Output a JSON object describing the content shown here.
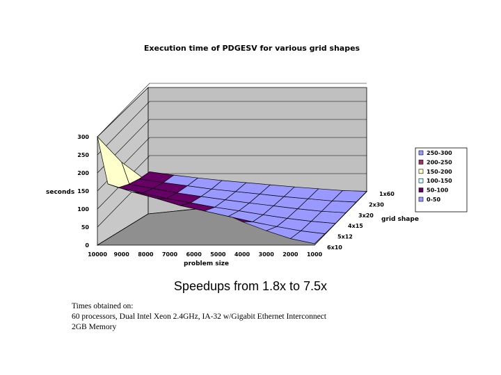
{
  "caption": "Speedups from 1.8x to 7.5x",
  "notes": {
    "line1": "Times obtained on:",
    "line2": "60 processors, Dual Intel Xeon 2.4GHz, IA-32 w/Gigabit Ethernet Interconnect",
    "line3": "2GB Memory"
  },
  "chart_data": {
    "type": "surface",
    "title": "Execution time of PDGESV for various grid shapes",
    "xlabel": "problem size",
    "ylabel": "grid shape",
    "zlabel": "seconds",
    "x": [
      "10000",
      "9000",
      "8000",
      "7000",
      "6000",
      "5000",
      "4000",
      "3000",
      "2000",
      "1000"
    ],
    "y": [
      "1x60",
      "2x30",
      "3x20",
      "4x15",
      "5x12",
      "6x10"
    ],
    "z_ticks": [
      "0",
      "50",
      "100",
      "150",
      "200",
      "250",
      "300"
    ],
    "zlim": [
      0,
      300
    ],
    "z": [
      [
        300,
        230,
        180,
        150,
        120,
        95,
        65,
        40,
        18,
        4
      ],
      [
        140,
        118,
        100,
        80,
        65,
        50,
        35,
        22,
        10,
        2
      ],
      [
        100,
        85,
        70,
        58,
        46,
        36,
        25,
        15,
        7,
        1
      ],
      [
        80,
        68,
        56,
        46,
        37,
        28,
        20,
        12,
        5,
        1
      ],
      [
        65,
        55,
        46,
        37,
        30,
        23,
        16,
        10,
        4,
        1
      ],
      [
        55,
        46,
        38,
        31,
        25,
        19,
        13,
        8,
        3,
        1
      ]
    ],
    "legend": [
      {
        "label": "250-300",
        "color": "#9999ff"
      },
      {
        "label": "200-250",
        "color": "#993366"
      },
      {
        "label": "150-200",
        "color": "#ffffcc"
      },
      {
        "label": "100-150",
        "color": "#ccffff"
      },
      {
        "label": "50-100",
        "color": "#660066"
      },
      {
        "label": "0-50",
        "color": "#9999ff"
      }
    ],
    "band_colors": [
      "#9999ff",
      "#993366",
      "#ffffcc",
      "#ccffff",
      "#660066",
      "#9999ff"
    ],
    "legend_position": "right",
    "grid": true
  }
}
